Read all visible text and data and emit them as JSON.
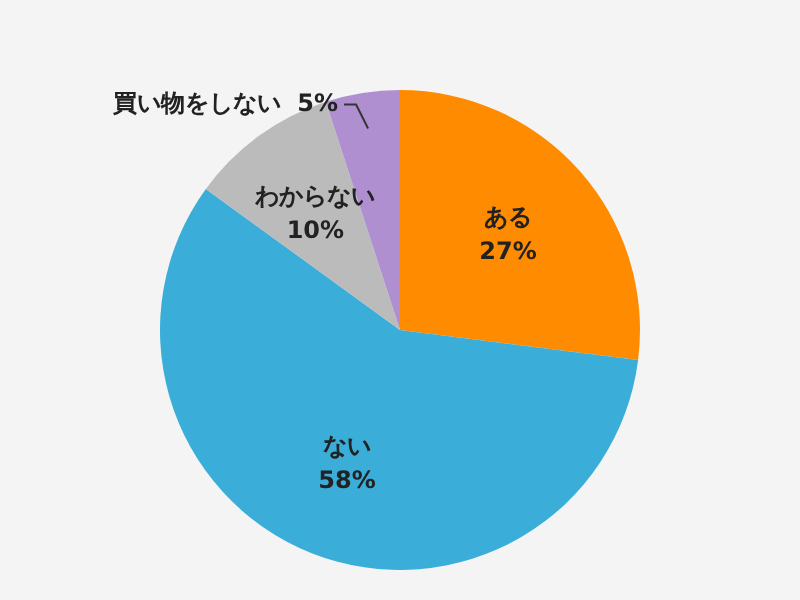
{
  "chart_data": {
    "type": "pie",
    "categories": [
      "ある",
      "ない",
      "わからない",
      "買い物をしない"
    ],
    "values": [
      27,
      58,
      10,
      5
    ],
    "value_labels": [
      "27%",
      "58%",
      "10%",
      "5%"
    ],
    "colors": [
      "#ff8c00",
      "#3aaed8",
      "#bbbbbb",
      "#b08fd0"
    ],
    "legend": false
  }
}
